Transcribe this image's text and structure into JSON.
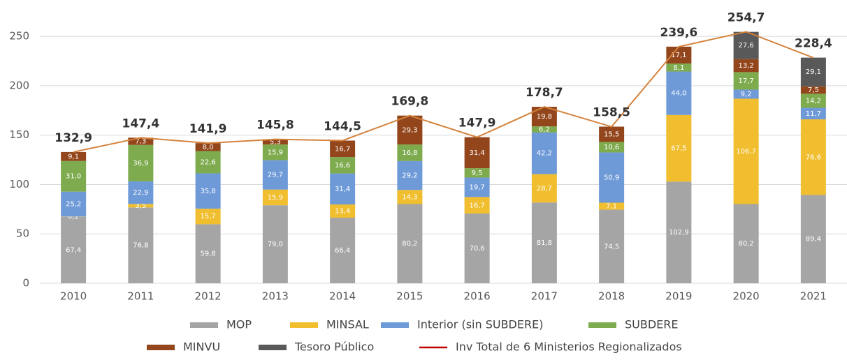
{
  "chart_data": {
    "type": "bar",
    "stacked": true,
    "categories": [
      "2010",
      "2011",
      "2012",
      "2013",
      "2014",
      "2015",
      "2016",
      "2017",
      "2018",
      "2019",
      "2020",
      "2021"
    ],
    "series": [
      {
        "name": "MOP",
        "color": "#a5a5a5",
        "values": [
          67.4,
          76.8,
          59.8,
          79.0,
          66.4,
          80.2,
          70.6,
          81.8,
          74.5,
          102.9,
          80.2,
          89.4
        ],
        "value_labels": [
          "67,4",
          "76,8",
          "59,8",
          "79,0",
          "66,4",
          "80,2",
          "70,6",
          "81,8",
          "74,5",
          "102,9",
          "80,2",
          "89,4"
        ]
      },
      {
        "name": "MINSAL",
        "color": "#f0be2e",
        "values": [
          0.2,
          3.5,
          15.7,
          15.9,
          13.4,
          14.3,
          16.7,
          28.7,
          7.1,
          67.5,
          106.7,
          76.6
        ],
        "value_labels": [
          "0,2",
          "3,5",
          "15,7",
          "15,9",
          "13,4",
          "14,3",
          "16,7",
          "28,7",
          "7,1",
          "67,5",
          "106,7",
          "76,6"
        ]
      },
      {
        "name": "Interior (sin SUBDERE)",
        "color": "#6f9ad8",
        "values": [
          25.2,
          22.9,
          35.8,
          29.7,
          31.4,
          29.2,
          19.7,
          42.2,
          50.9,
          44.0,
          9.2,
          11.7
        ],
        "value_labels": [
          "25,2",
          "22,9",
          "35,8",
          "29,7",
          "31,4",
          "29,2",
          "19,7",
          "42,2",
          "50,9",
          "44,0",
          "9,2",
          "11,7"
        ]
      },
      {
        "name": "SUBDERE",
        "color": "#7fab4f",
        "values": [
          31.0,
          36.9,
          22.6,
          15.9,
          16.6,
          16.8,
          9.5,
          6.2,
          10.6,
          8.1,
          17.7,
          14.2
        ],
        "value_labels": [
          "31,0",
          "36,9",
          "22,6",
          "15,9",
          "16,6",
          "16,8",
          "9,5",
          "6,2",
          "10,6",
          "8,1",
          "17,7",
          "14,2"
        ]
      },
      {
        "name": "MINVU",
        "color": "#93461c",
        "values": [
          9.1,
          7.3,
          8.0,
          5.3,
          16.7,
          29.3,
          31.4,
          19.8,
          15.5,
          17.1,
          13.2,
          7.5
        ],
        "value_labels": [
          "9,1",
          "7,3",
          "8,0",
          "5,3",
          "16,7",
          "29,3",
          "31,4",
          "19,8",
          "15,5",
          "17,1",
          "13,2",
          "7,5"
        ]
      },
      {
        "name": "Tesoro Público",
        "color": "#595959",
        "values": [
          null,
          null,
          null,
          null,
          null,
          null,
          null,
          null,
          null,
          null,
          27.6,
          29.1
        ],
        "value_labels": [
          null,
          null,
          null,
          null,
          null,
          null,
          null,
          null,
          null,
          null,
          "27,6",
          "29,1"
        ]
      },
      {
        "name": "Inv Total de 6 Ministerios Regionalizados",
        "type": "line",
        "color": "#d4823c",
        "legend_color": "#c00000",
        "values": [
          132.9,
          147.4,
          141.9,
          145.8,
          144.5,
          169.8,
          147.9,
          178.7,
          158.5,
          239.6,
          254.7,
          228.4
        ],
        "value_labels": [
          "132,9",
          "147,4",
          "141,9",
          "145,8",
          "144,5",
          "169,8",
          "147,9",
          "178,7",
          "158,5",
          "239,6",
          "254,7",
          "228,4"
        ]
      }
    ],
    "ylim": [
      0,
      260
    ],
    "yticks": [
      0,
      50,
      100,
      150,
      200,
      250
    ],
    "grid": true
  }
}
